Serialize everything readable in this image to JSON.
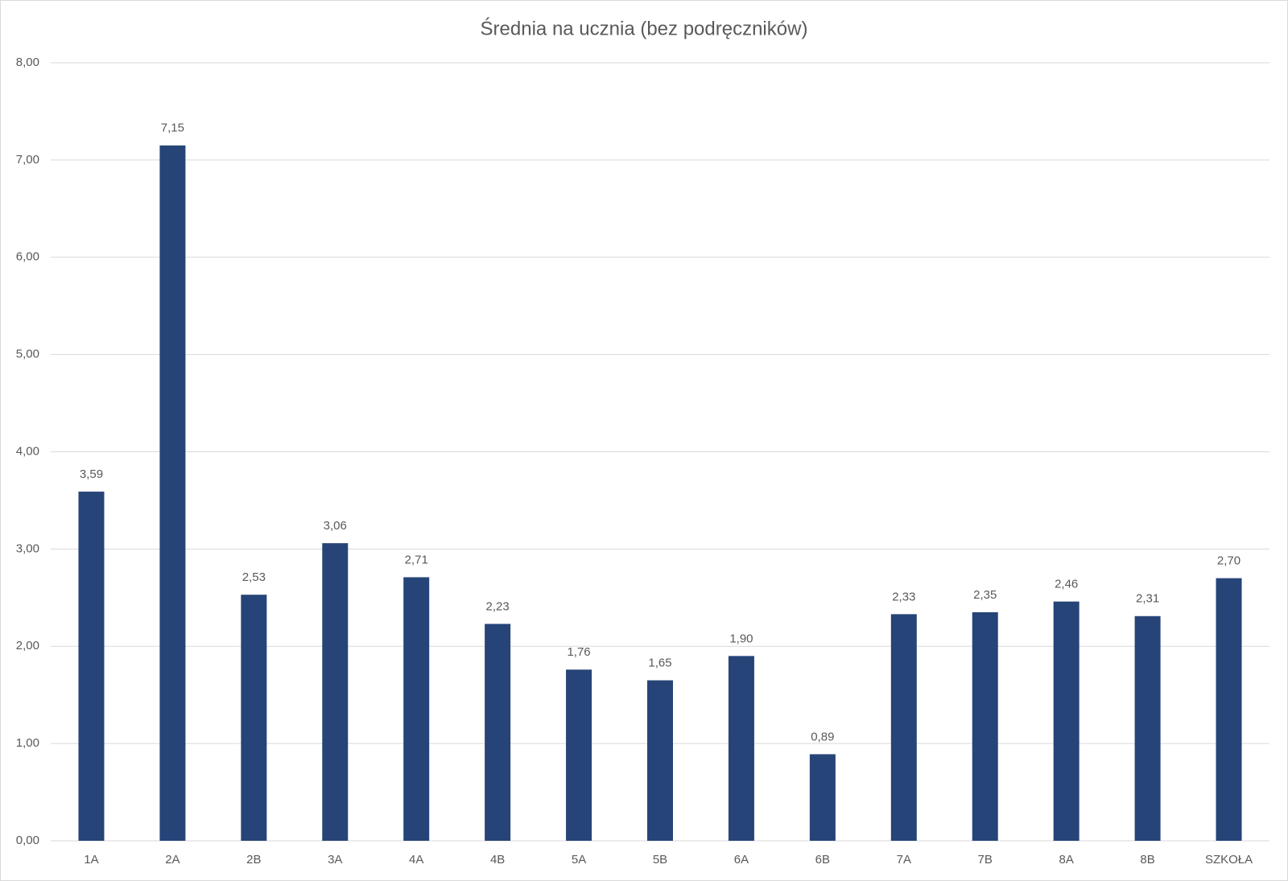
{
  "chart_data": {
    "type": "bar",
    "title": "Średnia na ucznia (bez podręczników)",
    "categories": [
      "1A",
      "2A",
      "2B",
      "3A",
      "4A",
      "4B",
      "5A",
      "5B",
      "6A",
      "6B",
      "7A",
      "7B",
      "8A",
      "8B",
      "SZKOŁA"
    ],
    "values": [
      3.59,
      7.15,
      2.53,
      3.06,
      2.71,
      2.23,
      1.76,
      1.65,
      1.9,
      0.89,
      2.33,
      2.35,
      2.46,
      2.31,
      2.7
    ],
    "value_labels": [
      "3,59",
      "7,15",
      "2,53",
      "3,06",
      "2,71",
      "2,23",
      "1,76",
      "1,65",
      "1,90",
      "0,89",
      "2,33",
      "2,35",
      "2,46",
      "2,31",
      "2,70"
    ],
    "color": "#264478",
    "ylim": [
      0,
      8
    ],
    "yticks": [
      {
        "value": 0,
        "label": "0,00"
      },
      {
        "value": 1,
        "label": "1,00"
      },
      {
        "value": 2,
        "label": "2,00"
      },
      {
        "value": 3,
        "label": "3,00"
      },
      {
        "value": 4,
        "label": "4,00"
      },
      {
        "value": 5,
        "label": "5,00"
      },
      {
        "value": 6,
        "label": "6,00"
      },
      {
        "value": 7,
        "label": "7,00"
      },
      {
        "value": 8,
        "label": "8,00"
      }
    ],
    "grid": true
  }
}
